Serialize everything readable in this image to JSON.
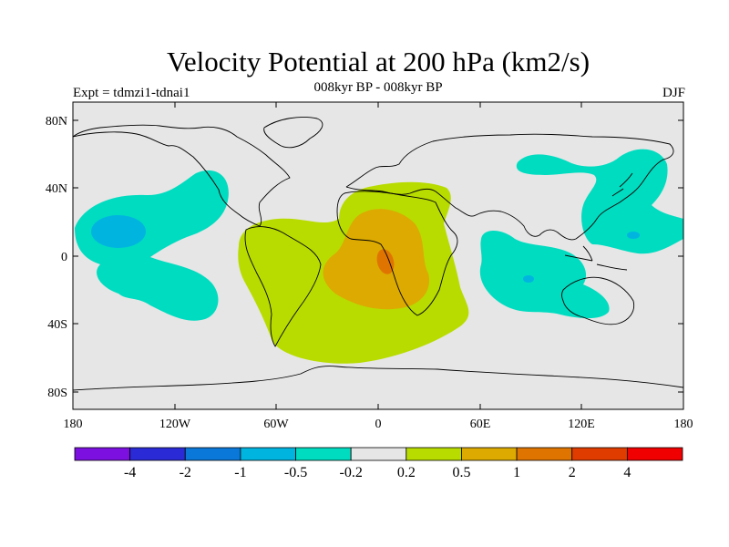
{
  "map": {
    "title": "Velocity Potential at 200 hPa (km2/s)",
    "subtitle": "008kyr BP - 008kyr BP",
    "experiment": "Expt = tdmzi1-tdnai1",
    "season": "DJF",
    "lat_ticks": [
      "80N",
      "40N",
      "0",
      "40S",
      "80S"
    ],
    "lon_ticks": [
      "180",
      "120W",
      "60W",
      "0",
      "60E",
      "120E",
      "180"
    ],
    "colorbar": {
      "colors": [
        "#7b10e0",
        "#2a2ad6",
        "#0a78d8",
        "#00b4e0",
        "#00dcc0",
        "#e6e6e6",
        "#b8dc00",
        "#dcaa00",
        "#e07400",
        "#e03c00",
        "#f00000"
      ],
      "labels": [
        "-4",
        "-2",
        "-1",
        "-0.5",
        "-0.2",
        "0.2",
        "0.5",
        "1",
        "2",
        "4"
      ]
    },
    "colors": {
      "background": "#e6e6e6",
      "neg_contour": "#00dcc0",
      "neg_core": "#00b4e0",
      "pos_contour": "#b8dc00",
      "pos_mid": "#dcaa00",
      "pos_core": "#e07400"
    }
  }
}
